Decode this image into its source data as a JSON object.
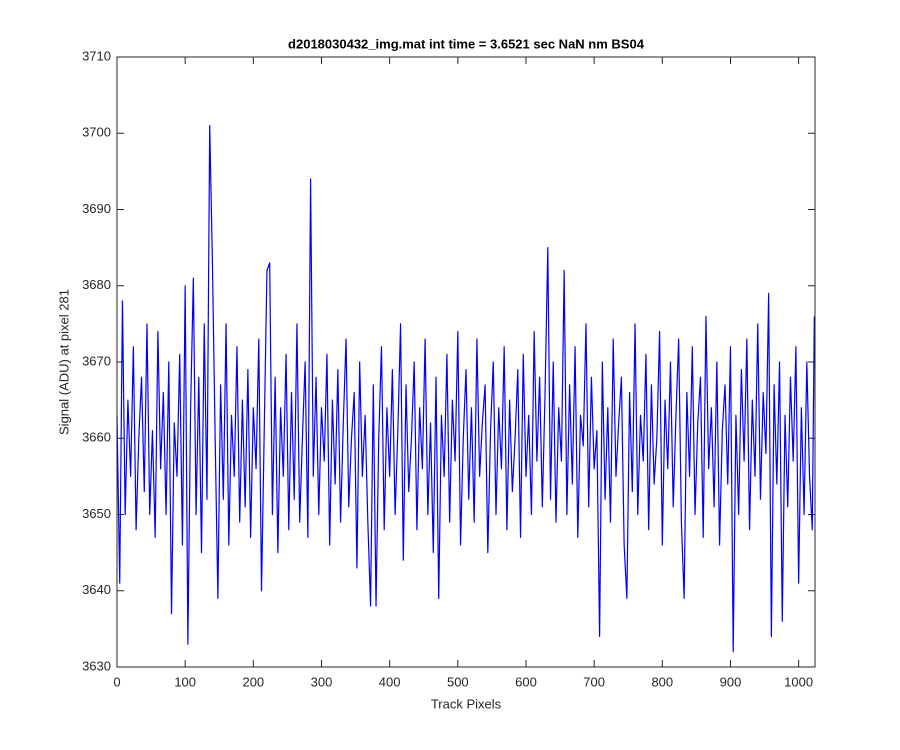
{
  "chart_data": {
    "type": "line",
    "title": "d2018030432_img.mat int time = 3.6521 sec  NaN nm BS04",
    "x_label": "Track Pixels",
    "y_label": "Signal (ADU) at pixel 281",
    "color": "#0000ff",
    "grid": false,
    "xlim": [
      0,
      1024
    ],
    "ylim": [
      3630,
      3710
    ],
    "xticks": [
      0,
      100,
      200,
      300,
      400,
      500,
      600,
      700,
      800,
      900,
      1000
    ],
    "yticks": [
      3630,
      3640,
      3650,
      3660,
      3670,
      3680,
      3690,
      3700,
      3710
    ],
    "x": [
      0,
      4,
      8,
      12,
      16,
      20,
      24,
      28,
      32,
      36,
      40,
      44,
      48,
      52,
      56,
      60,
      64,
      68,
      72,
      76,
      80,
      84,
      88,
      92,
      96,
      100,
      104,
      108,
      112,
      116,
      120,
      124,
      128,
      132,
      136,
      140,
      144,
      148,
      152,
      156,
      160,
      164,
      168,
      172,
      176,
      180,
      184,
      188,
      192,
      196,
      200,
      204,
      208,
      212,
      216,
      220,
      224,
      228,
      232,
      236,
      240,
      244,
      248,
      252,
      256,
      260,
      264,
      268,
      272,
      276,
      280,
      284,
      288,
      292,
      296,
      300,
      304,
      308,
      312,
      316,
      320,
      324,
      328,
      332,
      336,
      340,
      344,
      348,
      352,
      356,
      360,
      364,
      368,
      372,
      376,
      380,
      384,
      388,
      392,
      396,
      400,
      404,
      408,
      412,
      416,
      420,
      424,
      428,
      432,
      436,
      440,
      444,
      448,
      452,
      456,
      460,
      464,
      468,
      472,
      476,
      480,
      484,
      488,
      492,
      496,
      500,
      504,
      508,
      512,
      516,
      520,
      524,
      528,
      532,
      536,
      540,
      544,
      548,
      552,
      556,
      560,
      564,
      568,
      572,
      576,
      580,
      584,
      588,
      592,
      596,
      600,
      604,
      608,
      612,
      616,
      620,
      624,
      628,
      632,
      636,
      640,
      644,
      648,
      652,
      656,
      660,
      664,
      668,
      672,
      676,
      680,
      684,
      688,
      692,
      696,
      700,
      704,
      708,
      712,
      716,
      720,
      724,
      728,
      732,
      736,
      740,
      744,
      748,
      752,
      756,
      760,
      764,
      768,
      772,
      776,
      780,
      784,
      788,
      792,
      796,
      800,
      804,
      808,
      812,
      816,
      820,
      824,
      828,
      832,
      836,
      840,
      844,
      848,
      852,
      856,
      860,
      864,
      868,
      872,
      876,
      880,
      884,
      888,
      892,
      896,
      900,
      904,
      908,
      912,
      916,
      920,
      924,
      928,
      932,
      936,
      940,
      944,
      948,
      952,
      956,
      960,
      964,
      968,
      972,
      976,
      980,
      984,
      988,
      992,
      996,
      1000,
      1004,
      1008,
      1012,
      1016,
      1020,
      1023
    ],
    "values": [
      3663,
      3641,
      3678,
      3650,
      3665,
      3655,
      3672,
      3648,
      3660,
      3668,
      3653,
      3675,
      3650,
      3661,
      3647,
      3674,
      3656,
      3666,
      3650,
      3670,
      3637,
      3662,
      3655,
      3671,
      3646,
      3680,
      3633,
      3664,
      3681,
      3650,
      3668,
      3645,
      3675,
      3652,
      3701,
      3683,
      3660,
      3639,
      3667,
      3652,
      3675,
      3646,
      3663,
      3655,
      3672,
      3649,
      3665,
      3651,
      3669,
      3647,
      3664,
      3656,
      3673,
      3640,
      3661,
      3682,
      3683,
      3650,
      3668,
      3645,
      3664,
      3655,
      3671,
      3648,
      3666,
      3652,
      3675,
      3649,
      3660,
      3670,
      3647,
      3694,
      3655,
      3668,
      3650,
      3664,
      3657,
      3671,
      3646,
      3665,
      3654,
      3669,
      3649,
      3662,
      3673,
      3651,
      3660,
      3666,
      3643,
      3670,
      3655,
      3663,
      3649,
      3638,
      3667,
      3638,
      3660,
      3672,
      3648,
      3664,
      3655,
      3669,
      3650,
      3661,
      3675,
      3644,
      3667,
      3653,
      3660,
      3670,
      3648,
      3664,
      3656,
      3673,
      3650,
      3662,
      3645,
      3668,
      3639,
      3663,
      3655,
      3671,
      3649,
      3665,
      3657,
      3674,
      3646,
      3660,
      3669,
      3652,
      3664,
      3649,
      3673,
      3655,
      3662,
      3667,
      3645,
      3661,
      3670,
      3650,
      3664,
      3656,
      3672,
      3648,
      3665,
      3653,
      3660,
      3669,
      3647,
      3671,
      3655,
      3663,
      3650,
      3674,
      3657,
      3668,
      3651,
      3666,
      3685,
      3652,
      3670,
      3649,
      3664,
      3657,
      3682,
      3650,
      3667,
      3654,
      3672,
      3647,
      3663,
      3659,
      3675,
      3651,
      3668,
      3656,
      3661,
      3634,
      3670,
      3652,
      3664,
      3649,
      3673,
      3655,
      3662,
      3668,
      3646,
      3639,
      3666,
      3653,
      3675,
      3650,
      3663,
      3657,
      3671,
      3648,
      3667,
      3654,
      3660,
      3674,
      3646,
      3665,
      3656,
      3670,
      3651,
      3663,
      3673,
      3649,
      3639,
      3666,
      3655,
      3672,
      3650,
      3662,
      3668,
      3647,
      3676,
      3656,
      3664,
      3651,
      3670,
      3646,
      3661,
      3667,
      3654,
      3672,
      3632,
      3663,
      3650,
      3669,
      3657,
      3673,
      3648,
      3665,
      3655,
      3675,
      3652,
      3666,
      3658,
      3679,
      3634,
      3667,
      3654,
      3670,
      3636,
      3663,
      3651,
      3668,
      3657,
      3672,
      3641,
      3664,
      3650,
      3670,
      3655,
      3648,
      3676
    ]
  }
}
